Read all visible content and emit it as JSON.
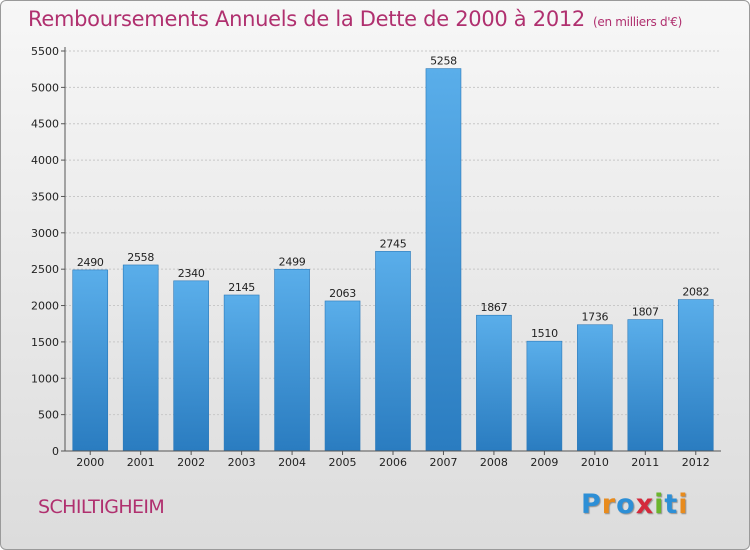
{
  "header": {
    "title": "Remboursements Annuels de la Dette de 2000 à 2012",
    "subtitle": "(en milliers d'€)"
  },
  "footer": {
    "commune": "SCHILTIGHEIM",
    "logo_letters": [
      "P",
      "r",
      "o",
      "x",
      "i",
      "t",
      "i"
    ]
  },
  "colors": {
    "title": "#b0306f",
    "bar_top": "#5aaeea",
    "bar_bottom": "#2a7cc0"
  },
  "chart_data": {
    "type": "bar",
    "title": "Remboursements Annuels de la Dette de 2000 à 2012",
    "subtitle": "(en milliers d'€)",
    "categories": [
      "2000",
      "2001",
      "2002",
      "2003",
      "2004",
      "2005",
      "2006",
      "2007",
      "2008",
      "2009",
      "2010",
      "2011",
      "2012"
    ],
    "values": [
      2490,
      2558,
      2340,
      2145,
      2499,
      2063,
      2745,
      5258,
      1867,
      1510,
      1736,
      1807,
      2082
    ],
    "ylim": [
      0,
      5500
    ],
    "yticks": [
      0,
      500,
      1000,
      1500,
      2000,
      2500,
      3000,
      3500,
      4000,
      4500,
      5000,
      5500
    ],
    "grid": true,
    "data_labels": true
  }
}
